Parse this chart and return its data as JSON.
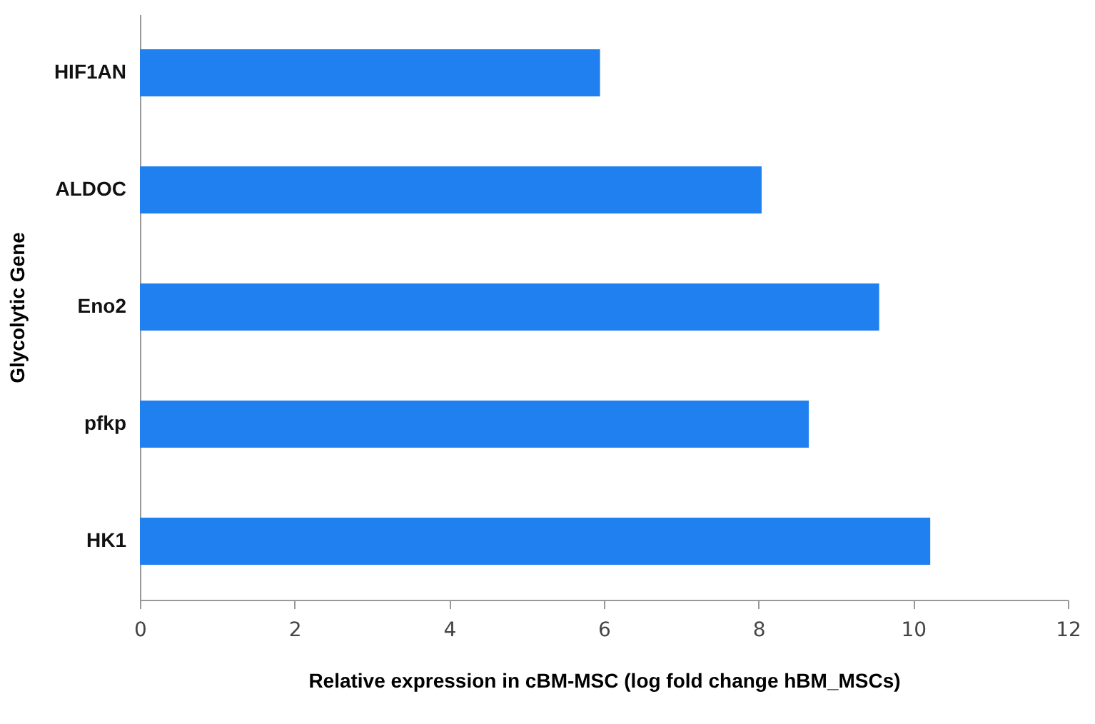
{
  "chart_data": {
    "type": "bar",
    "orientation": "horizontal",
    "xlabel": "Relative expression in cBM-MSC (log fold change hBM_MSCs)",
    "ylabel": "Glycolytic Gene",
    "categories": [
      "HIF1AN",
      "ALDOC",
      "Eno2",
      "pfkp",
      "HK1"
    ],
    "values": [
      5.95,
      8.04,
      9.56,
      8.65,
      10.22
    ],
    "color": "#2080f0",
    "xlim": [
      0,
      12
    ],
    "xticks": [
      0,
      2,
      4,
      6,
      8,
      10,
      12
    ],
    "grid": false
  }
}
